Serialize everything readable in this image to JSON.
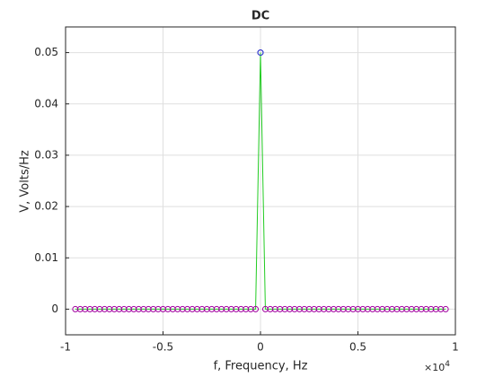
{
  "chart_data": {
    "type": "line",
    "title": "DC",
    "xlabel": "f, Frequency, Hz",
    "ylabel": "V, Volts/Hz",
    "x_multiplier": "×10",
    "x_exponent": "4",
    "xlim": [
      -10000,
      10000
    ],
    "xticks": [
      {
        "value": -10000,
        "label": "-1"
      },
      {
        "value": -5000,
        "label": "-0.5"
      },
      {
        "value": 0,
        "label": "0"
      },
      {
        "value": 5000,
        "label": "0.5"
      },
      {
        "value": 10000,
        "label": "1"
      }
    ],
    "ylim": [
      -0.005,
      0.055
    ],
    "yticks": [
      0,
      0.01,
      0.02,
      0.03,
      0.04,
      0.05
    ],
    "grid": true,
    "series": [
      {
        "color": "#22cc22",
        "marker_color": "#a0009e",
        "x": [
          -9500,
          -9250,
          -9000,
          -8750,
          -8500,
          -8250,
          -8000,
          -7750,
          -7500,
          -7250,
          -7000,
          -6750,
          -6500,
          -6250,
          -6000,
          -5750,
          -5500,
          -5250,
          -5000,
          -4750,
          -4500,
          -4250,
          -4000,
          -3750,
          -3500,
          -3250,
          -3000,
          -2750,
          -2500,
          -2250,
          -2000,
          -1750,
          -1500,
          -1250,
          -1000,
          -750,
          -500,
          -250,
          0,
          250,
          500,
          750,
          1000,
          1250,
          1500,
          1750,
          2000,
          2250,
          2500,
          2750,
          3000,
          3250,
          3500,
          3750,
          4000,
          4250,
          4500,
          4750,
          5000,
          5250,
          5500,
          5750,
          6000,
          6250,
          6500,
          6750,
          7000,
          7250,
          7500,
          7750,
          8000,
          8250,
          8500,
          8750,
          9000,
          9250,
          9500
        ],
        "values": [
          0,
          0,
          0,
          0,
          0,
          0,
          0,
          0,
          0,
          0,
          0,
          0,
          0,
          0,
          0,
          0,
          0,
          0,
          0,
          0,
          0,
          0,
          0,
          0,
          0,
          0,
          0,
          0,
          0,
          0,
          0,
          0,
          0,
          0,
          0,
          0,
          0,
          0,
          0.05,
          0,
          0,
          0,
          0,
          0,
          0,
          0,
          0,
          0,
          0,
          0,
          0,
          0,
          0,
          0,
          0,
          0,
          0,
          0,
          0,
          0,
          0,
          0,
          0,
          0,
          0,
          0,
          0,
          0,
          0,
          0,
          0,
          0,
          0,
          0,
          0,
          0,
          0
        ]
      },
      {
        "color": "#1f3fd6",
        "marker_color": "#1f3fd6",
        "x": [
          0
        ],
        "values": [
          0.05
        ]
      }
    ]
  }
}
